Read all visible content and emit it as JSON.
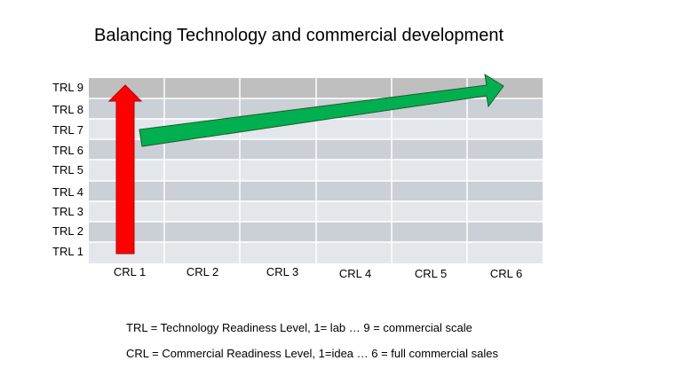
{
  "title": "Balancing Technology and commercial development",
  "trl_labels": [
    "TRL 9",
    "TRL 8",
    "TRL 7",
    "TRL 6",
    "TRL 5",
    "TRL 4",
    "TRL 3",
    "TRL 2",
    "TRL 1"
  ],
  "crl_labels": [
    "CRL 1",
    "CRL 2",
    "CRL 3",
    "CRL 4",
    "CRL 5",
    "CRL 6"
  ],
  "legend": {
    "trl": "TRL = Technology Readiness Level, 1= lab … 9 = commercial scale",
    "crl": "CRL = Commercial Readiness Level, 1=idea … 6 = full commercial sales"
  },
  "colors": {
    "row_top": "#bfbfbf",
    "row_dark": "#cbcfd6",
    "row_light": "#e3e6ea",
    "red_arrow": "#ff0000",
    "green_arrow": "#00b050"
  },
  "arrows": [
    {
      "name": "technology-arrow",
      "color": "red",
      "from": "TRL 1",
      "to": "TRL 9",
      "at": "CRL 1"
    },
    {
      "name": "commercial-arrow",
      "color": "green",
      "from": "CRL 1",
      "to": "CRL 6",
      "level_from": "TRL 6-7",
      "level_to": "TRL 9"
    }
  ]
}
